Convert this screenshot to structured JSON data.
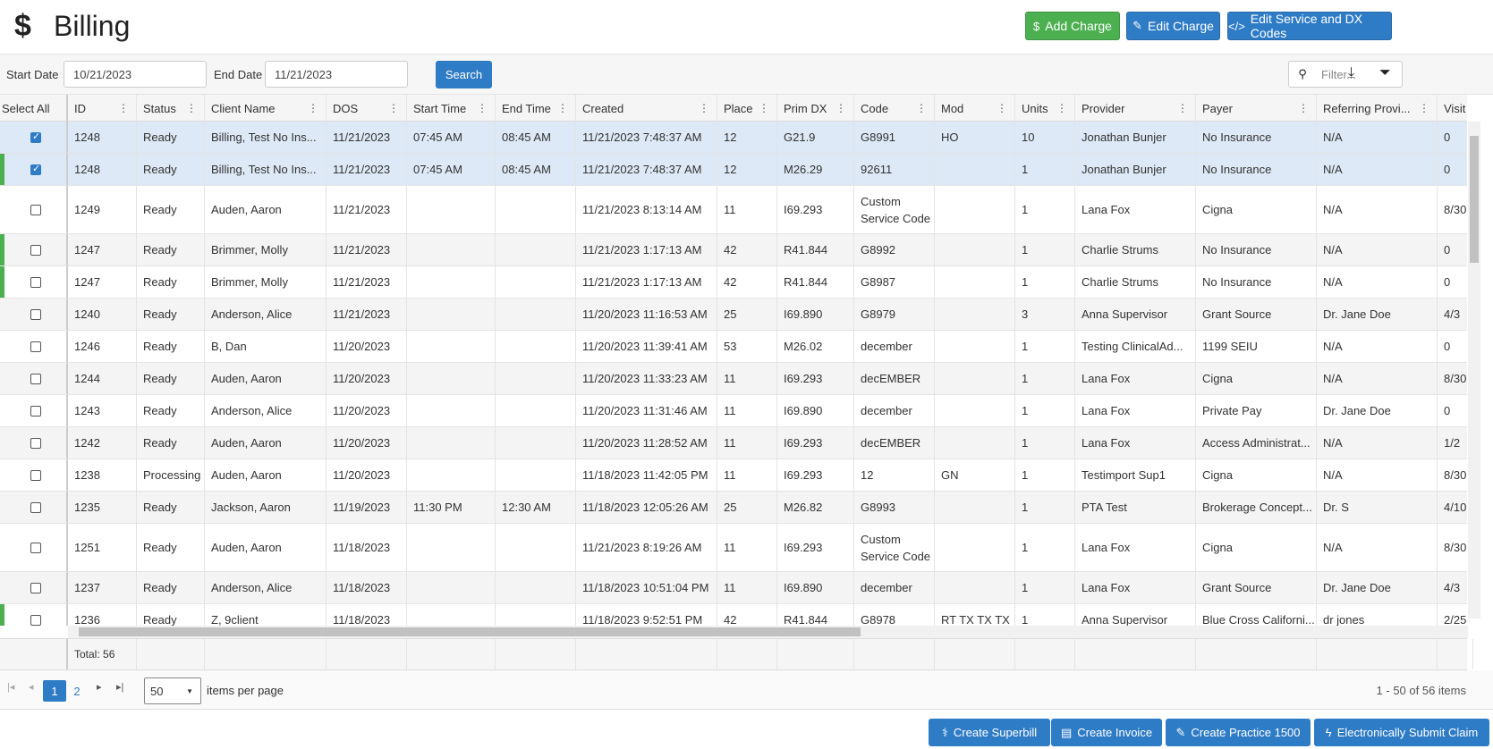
{
  "page": {
    "title": "Billing",
    "title_icon": "dollar-icon"
  },
  "header_buttons": {
    "add_charge": "Add Charge",
    "edit_charge": "Edit Charge",
    "edit_codes": "Edit Service and DX Codes"
  },
  "toolbar": {
    "start_label": "Start Date",
    "start_value": "10/21/2023",
    "end_label": "End Date",
    "end_value": "11/21/2023",
    "search_label": "Search",
    "filter_placeholder": "Filter..."
  },
  "columns": [
    "Select All",
    "ID",
    "Status",
    "Client Name",
    "DOS",
    "Start Time",
    "End Time",
    "Created",
    "Place",
    "Prim DX",
    "Code",
    "Mod",
    "Units",
    "Provider",
    "Payer",
    "Referring Provi...",
    "Visit"
  ],
  "rows": [
    {
      "checked": true,
      "flag": false,
      "id": "1248",
      "status": "Ready",
      "client": "Billing, Test No Ins...",
      "dos": "11/21/2023",
      "start": "07:45 AM",
      "end": "08:45 AM",
      "created": "11/21/2023 7:48:37 AM",
      "place": "12",
      "dx": "G21.9",
      "code": "G8991",
      "mod": "HO",
      "units": "10",
      "provider": "Jonathan Bunjer",
      "payer": "No Insurance",
      "ref": "N/A",
      "visit": "0"
    },
    {
      "checked": true,
      "flag": true,
      "id": "1248",
      "status": "Ready",
      "client": "Billing, Test No Ins...",
      "dos": "11/21/2023",
      "start": "07:45 AM",
      "end": "08:45 AM",
      "created": "11/21/2023 7:48:37 AM",
      "place": "12",
      "dx": "M26.29",
      "code": "92611",
      "mod": "",
      "units": "1",
      "provider": "Jonathan Bunjer",
      "payer": "No Insurance",
      "ref": "N/A",
      "visit": "0"
    },
    {
      "checked": false,
      "flag": false,
      "id": "1249",
      "status": "Ready",
      "client": "Auden, Aaron",
      "dos": "11/21/2023",
      "start": "",
      "end": "",
      "created": "11/21/2023 8:13:14 AM",
      "place": "11",
      "dx": "I69.293",
      "code": "Custom Service Code",
      "mod": "",
      "units": "1",
      "provider": "Lana Fox",
      "payer": "Cigna",
      "ref": "N/A",
      "visit": "8/30"
    },
    {
      "checked": false,
      "flag": true,
      "id": "1247",
      "status": "Ready",
      "client": "Brimmer, Molly",
      "dos": "11/21/2023",
      "start": "",
      "end": "",
      "created": "11/21/2023 1:17:13 AM",
      "place": "42",
      "dx": "R41.844",
      "code": "G8992",
      "mod": "",
      "units": "1",
      "provider": "Charlie Strums",
      "payer": "No Insurance",
      "ref": "N/A",
      "visit": "0"
    },
    {
      "checked": false,
      "flag": true,
      "id": "1247",
      "status": "Ready",
      "client": "Brimmer, Molly",
      "dos": "11/21/2023",
      "start": "",
      "end": "",
      "created": "11/21/2023 1:17:13 AM",
      "place": "42",
      "dx": "R41.844",
      "code": "G8987",
      "mod": "",
      "units": "1",
      "provider": "Charlie Strums",
      "payer": "No Insurance",
      "ref": "N/A",
      "visit": "0"
    },
    {
      "checked": false,
      "flag": false,
      "id": "1240",
      "status": "Ready",
      "client": "Anderson, Alice",
      "dos": "11/21/2023",
      "start": "",
      "end": "",
      "created": "11/20/2023 11:16:53 AM",
      "place": "25",
      "dx": "I69.890",
      "code": "G8979",
      "mod": "",
      "units": "3",
      "provider": "Anna Supervisor",
      "payer": "Grant Source",
      "ref": "Dr. Jane Doe",
      "visit": "4/3"
    },
    {
      "checked": false,
      "flag": false,
      "id": "1246",
      "status": "Ready",
      "client": "B, Dan",
      "dos": "11/20/2023",
      "start": "",
      "end": "",
      "created": "11/20/2023 11:39:41 AM",
      "place": "53",
      "dx": "M26.02",
      "code": "december",
      "mod": "",
      "units": "1",
      "provider": "Testing ClinicalAd...",
      "payer": "1199 SEIU",
      "ref": "N/A",
      "visit": "0"
    },
    {
      "checked": false,
      "flag": false,
      "id": "1244",
      "status": "Ready",
      "client": "Auden, Aaron",
      "dos": "11/20/2023",
      "start": "",
      "end": "",
      "created": "11/20/2023 11:33:23 AM",
      "place": "11",
      "dx": "I69.293",
      "code": "decEMBER",
      "mod": "",
      "units": "1",
      "provider": "Lana Fox",
      "payer": "Cigna",
      "ref": "N/A",
      "visit": "8/30"
    },
    {
      "checked": false,
      "flag": false,
      "id": "1243",
      "status": "Ready",
      "client": "Anderson, Alice",
      "dos": "11/20/2023",
      "start": "",
      "end": "",
      "created": "11/20/2023 11:31:46 AM",
      "place": "11",
      "dx": "I69.890",
      "code": "december",
      "mod": "",
      "units": "1",
      "provider": "Lana Fox",
      "payer": "Private Pay",
      "ref": "Dr. Jane Doe",
      "visit": "0"
    },
    {
      "checked": false,
      "flag": false,
      "id": "1242",
      "status": "Ready",
      "client": "Auden, Aaron",
      "dos": "11/20/2023",
      "start": "",
      "end": "",
      "created": "11/20/2023 11:28:52 AM",
      "place": "11",
      "dx": "I69.293",
      "code": "decEMBER",
      "mod": "",
      "units": "1",
      "provider": "Lana Fox",
      "payer": "Access Administrat...",
      "ref": "N/A",
      "visit": "1/2"
    },
    {
      "checked": false,
      "flag": false,
      "id": "1238",
      "status": "Processing",
      "client": "Auden, Aaron",
      "dos": "11/20/2023",
      "start": "",
      "end": "",
      "created": "11/18/2023 11:42:05 PM",
      "place": "11",
      "dx": "I69.293",
      "code": "12",
      "mod": "GN",
      "units": "1",
      "provider": "Testimport Sup1",
      "payer": "Cigna",
      "ref": "N/A",
      "visit": "8/30"
    },
    {
      "checked": false,
      "flag": false,
      "id": "1235",
      "status": "Ready",
      "client": "Jackson, Aaron",
      "dos": "11/19/2023",
      "start": "11:30 PM",
      "end": "12:30 AM",
      "created": "11/18/2023 12:05:26 AM",
      "place": "25",
      "dx": "M26.82",
      "code": "G8993",
      "mod": "",
      "units": "1",
      "provider": "PTA Test",
      "payer": "Brokerage Concept...",
      "ref": "Dr. S",
      "visit": "4/10"
    },
    {
      "checked": false,
      "flag": false,
      "id": "1251",
      "status": "Ready",
      "client": "Auden, Aaron",
      "dos": "11/18/2023",
      "start": "",
      "end": "",
      "created": "11/21/2023 8:19:26 AM",
      "place": "11",
      "dx": "I69.293",
      "code": "Custom Service Code",
      "mod": "",
      "units": "1",
      "provider": "Lana Fox",
      "payer": "Cigna",
      "ref": "N/A",
      "visit": "8/30"
    },
    {
      "checked": false,
      "flag": false,
      "id": "1237",
      "status": "Ready",
      "client": "Anderson, Alice",
      "dos": "11/18/2023",
      "start": "",
      "end": "",
      "created": "11/18/2023 10:51:04 PM",
      "place": "11",
      "dx": "I69.890",
      "code": "december",
      "mod": "",
      "units": "1",
      "provider": "Lana Fox",
      "payer": "Grant Source",
      "ref": "Dr. Jane Doe",
      "visit": "4/3"
    },
    {
      "checked": false,
      "flag": true,
      "id": "1236",
      "status": "Ready",
      "client": "Z, 9client",
      "dos": "11/18/2023",
      "start": "",
      "end": "",
      "created": "11/18/2023 9:52:51 PM",
      "place": "42",
      "dx": "R41.844",
      "code": "G8978",
      "mod": "RT TX TX TX",
      "units": "1",
      "provider": "Anna Supervisor",
      "payer": "Blue Cross Californi...",
      "ref": "dr jones",
      "visit": "2/25"
    }
  ],
  "footer": {
    "total": "Total: 56"
  },
  "pager": {
    "pages": [
      "1",
      "2"
    ],
    "per_page": "50",
    "per_page_label": "items per page",
    "range": "1 - 50 of 56 items"
  },
  "bottom_buttons": {
    "superbill": "Create Superbill",
    "invoice": "Create Invoice",
    "practice": "Create Practice 1500",
    "submit": "Electronically Submit Claim"
  },
  "colors": {
    "green": "#4cb050",
    "blue": "#2f7cc6",
    "selected_row": "#dde9f6"
  }
}
